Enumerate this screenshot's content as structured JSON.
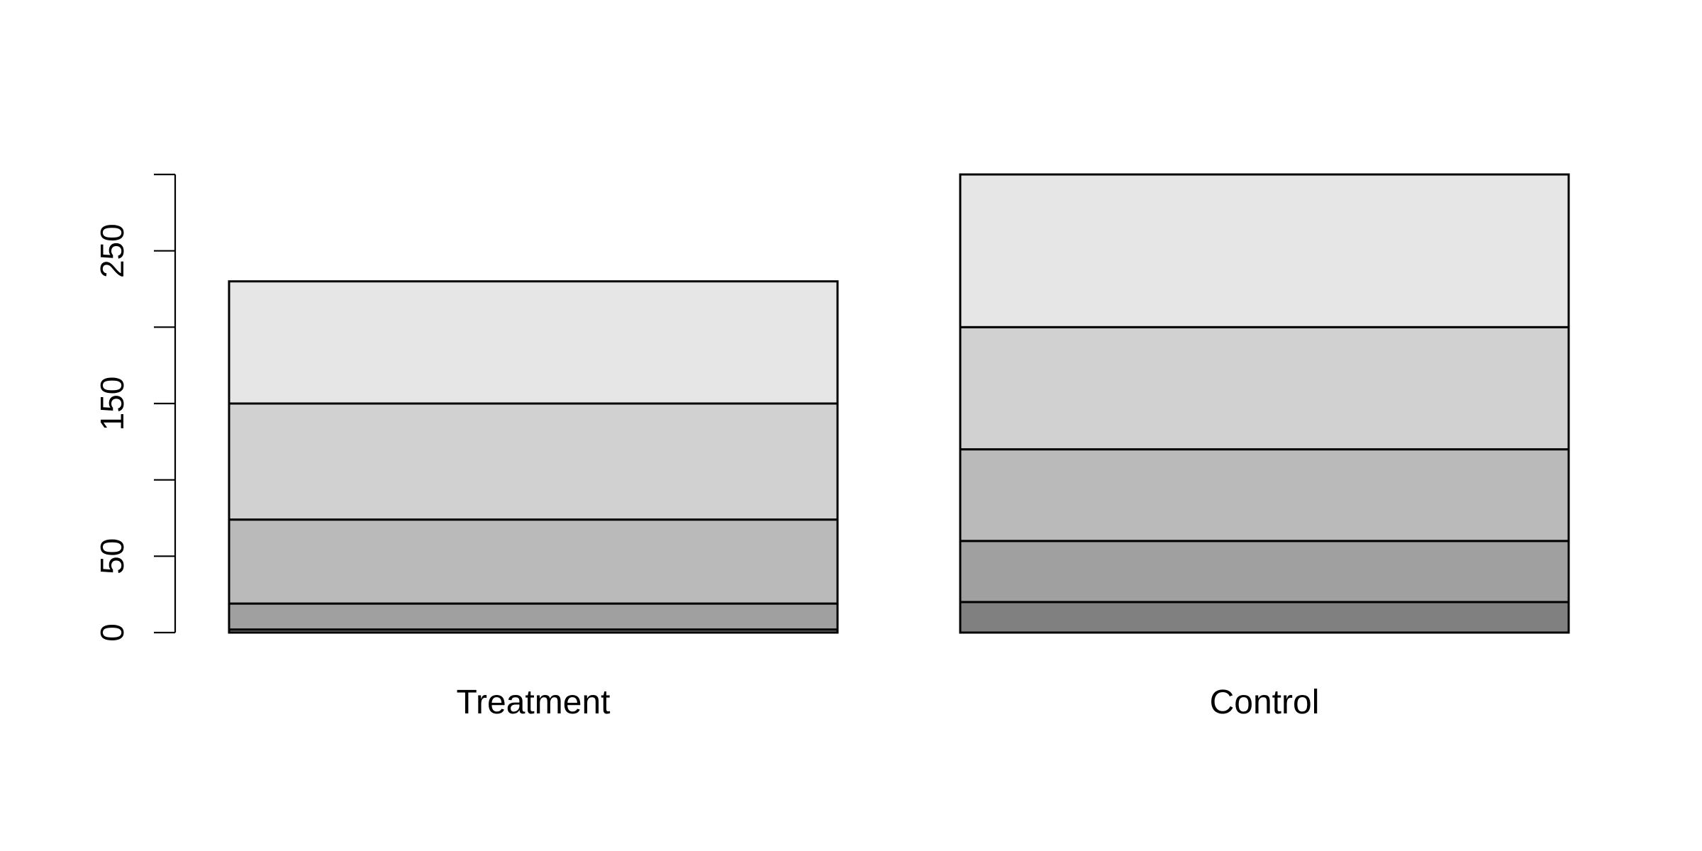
{
  "chart_data": {
    "type": "bar",
    "stacked": true,
    "categories": [
      "Treatment",
      "Control"
    ],
    "series": [
      {
        "values": [
          2,
          20
        ],
        "color": "#808080"
      },
      {
        "values": [
          17,
          40
        ],
        "color": "#a0a0a0"
      },
      {
        "values": [
          55,
          60
        ],
        "color": "#bababa"
      },
      {
        "values": [
          76,
          80
        ],
        "color": "#d1d1d1"
      },
      {
        "values": [
          80,
          100
        ],
        "color": "#e6e6e6"
      }
    ],
    "ylim": [
      0,
      300
    ],
    "yticks": [
      0,
      50,
      100,
      150,
      200,
      250,
      300
    ],
    "ytick_labels": [
      "0",
      "50",
      "",
      "150",
      "",
      "250",
      ""
    ],
    "grid": false,
    "legend": "none",
    "title": "",
    "xlabel": "",
    "ylabel": ""
  }
}
